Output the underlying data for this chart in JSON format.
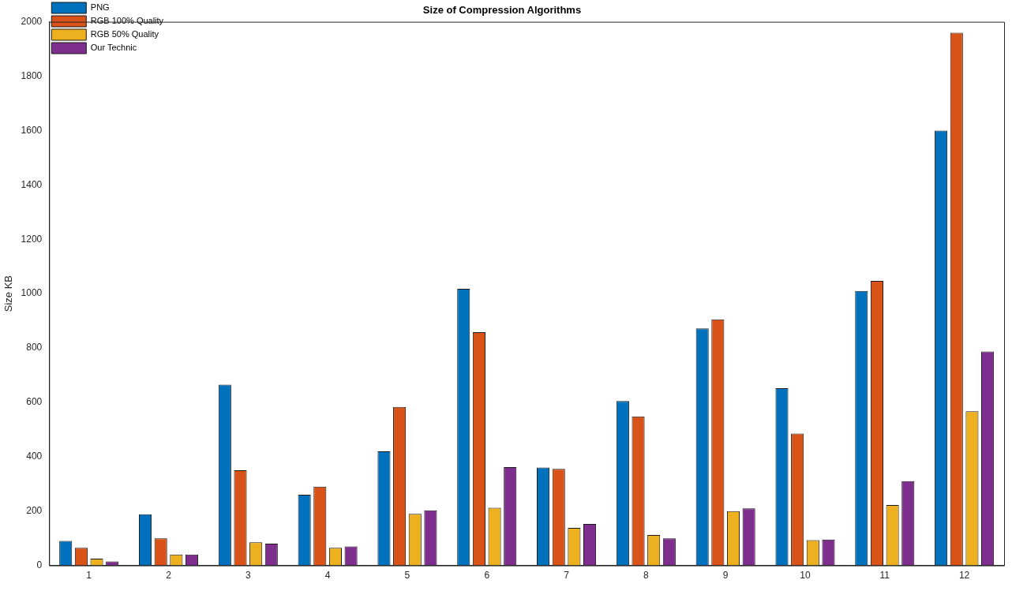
{
  "chart_data": {
    "type": "bar",
    "title": "Size of Compression Algorithms",
    "ylabel": "Size KB",
    "categories": [
      "1",
      "2",
      "3",
      "4",
      "5",
      "6",
      "7",
      "8",
      "9",
      "10",
      "11",
      "12"
    ],
    "series": [
      {
        "name": "PNG",
        "color": "#0072bd",
        "values": [
          90,
          188,
          665,
          260,
          420,
          1018,
          360,
          605,
          872,
          652,
          1010,
          1600
        ]
      },
      {
        "name": "RGB 100% Quality",
        "color": "#d95319",
        "values": [
          65,
          100,
          350,
          290,
          583,
          858,
          355,
          548,
          905,
          485,
          1047,
          1960
        ]
      },
      {
        "name": "RGB 50% Quality",
        "color": "#edb120",
        "values": [
          25,
          40,
          85,
          65,
          190,
          212,
          138,
          112,
          200,
          93,
          222,
          567
        ]
      },
      {
        "name": "Our Technic",
        "color": "#7e2f8e",
        "values": [
          15,
          40,
          80,
          70,
          203,
          362,
          153,
          100,
          210,
          95,
          310,
          787
        ]
      }
    ],
    "ylim": [
      0,
      2000
    ],
    "yticks": [
      0,
      200,
      400,
      600,
      800,
      1000,
      1200,
      1400,
      1600,
      1800,
      2000
    ],
    "grid": false,
    "legend": "top left"
  }
}
